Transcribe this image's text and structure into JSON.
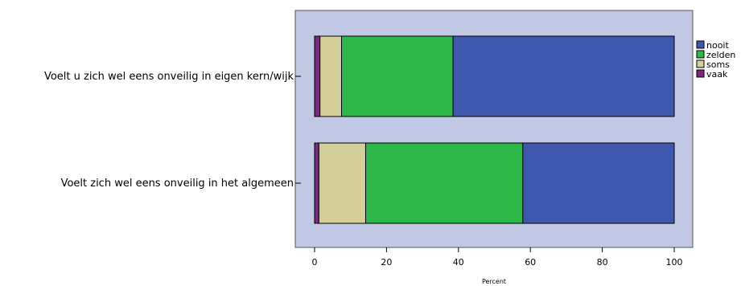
{
  "chart_data": {
    "type": "bar",
    "orientation": "horizontal",
    "stacked": true,
    "categories": [
      "Voelt u zich wel eens onveilig in eigen kern/wijk",
      "Voelt zich wel eens onveilig in het algemeen"
    ],
    "series": [
      {
        "name": "vaak",
        "color": "#7b2a7e",
        "values": [
          1.5,
          1.2
        ]
      },
      {
        "name": "soms",
        "color": "#d4cf98",
        "values": [
          6.0,
          13.0
        ]
      },
      {
        "name": "zelden",
        "color": "#2eb849",
        "values": [
          31.0,
          43.7
        ]
      },
      {
        "name": "nooit",
        "color": "#3f57ac",
        "values": [
          61.5,
          42.1
        ]
      }
    ],
    "legend_order": [
      "nooit",
      "zelden",
      "soms",
      "vaak"
    ],
    "xlabel": "Percent",
    "ylabel": "",
    "xlim": [
      0,
      100
    ],
    "xticks": [
      0,
      20,
      40,
      60,
      80,
      100
    ],
    "legend_position": "right",
    "plot_background": "#c0c8e3",
    "grid": false
  }
}
